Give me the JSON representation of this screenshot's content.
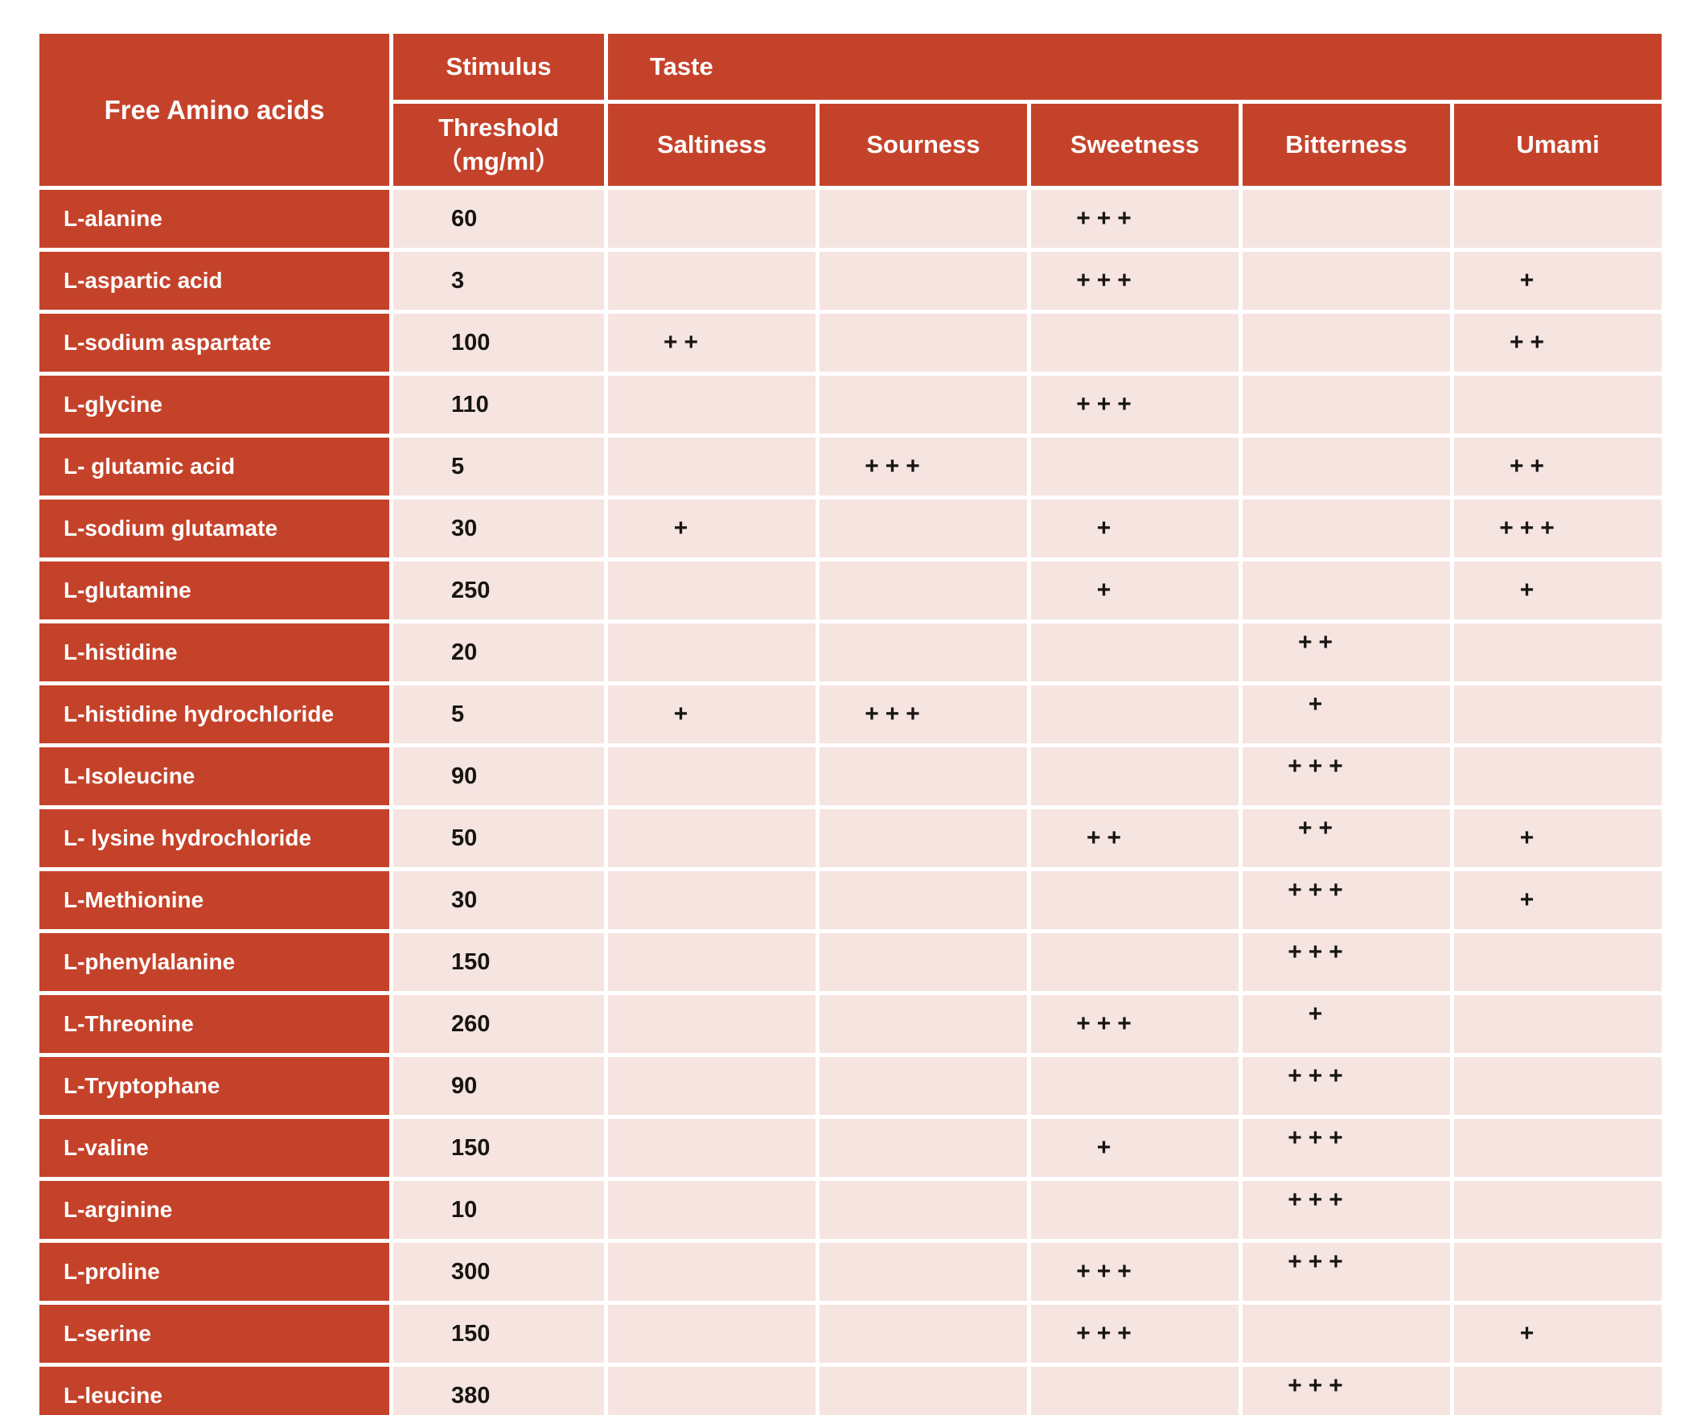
{
  "colors": {
    "header_red": "#C5422A",
    "cell_pink": "#F6E4E1",
    "text_dark": "#171513",
    "text_light": "#FFFFFF"
  },
  "table": {
    "header": {
      "amino_col": "Free Amino acids",
      "stimulus_line": "Stimulus",
      "threshold_line": "Threshold",
      "threshold_unit": "（mg/ml）",
      "taste_group": "Taste",
      "taste_columns": [
        "Saltiness",
        "Sourness",
        "Sweetness",
        "Bitterness",
        "Umami"
      ]
    },
    "rows": [
      {
        "name": "L-alanine",
        "threshold": "60",
        "saltiness": "",
        "sourness": "",
        "sweetness": "+++",
        "bitterness": "",
        "umami": ""
      },
      {
        "name": "L-aspartic acid",
        "threshold": "3",
        "saltiness": "",
        "sourness": "",
        "sweetness": "+++",
        "bitterness": "",
        "umami": "+"
      },
      {
        "name": "L-sodium aspartate",
        "threshold": "100",
        "saltiness": "++",
        "sourness": "",
        "sweetness": "",
        "bitterness": "",
        "umami": "++"
      },
      {
        "name": "L-glycine",
        "threshold": "110",
        "saltiness": "",
        "sourness": "",
        "sweetness": "+++",
        "bitterness": "",
        "umami": ""
      },
      {
        "name": "L- glutamic acid",
        "threshold": "5",
        "saltiness": "",
        "sourness": "+++",
        "sweetness": "",
        "bitterness": "",
        "umami": "++"
      },
      {
        "name": "L-sodium glutamate",
        "threshold": "30",
        "saltiness": "+",
        "sourness": "",
        "sweetness": "+",
        "bitterness": "",
        "umami": "+++"
      },
      {
        "name": "L-glutamine",
        "threshold": "250",
        "saltiness": "",
        "sourness": "",
        "sweetness": "+",
        "bitterness": "",
        "umami": "+"
      },
      {
        "name": "L-histidine",
        "threshold": "20",
        "saltiness": "",
        "sourness": "",
        "sweetness": "",
        "bitterness": "++",
        "umami": ""
      },
      {
        "name": "L-histidine hydrochloride",
        "threshold": "5",
        "saltiness": "+",
        "sourness": "+++",
        "sweetness": "",
        "bitterness": "+",
        "umami": ""
      },
      {
        "name": "L-Isoleucine",
        "threshold": "90",
        "saltiness": "",
        "sourness": "",
        "sweetness": "",
        "bitterness": "+++",
        "umami": ""
      },
      {
        "name": "L- lysine hydrochloride",
        "threshold": "50",
        "saltiness": "",
        "sourness": "",
        "sweetness": "++",
        "bitterness": "++",
        "umami": "+"
      },
      {
        "name": "L-Methionine",
        "threshold": "30",
        "saltiness": "",
        "sourness": "",
        "sweetness": "",
        "bitterness": "+++",
        "umami": "+"
      },
      {
        "name": "L-phenylalanine",
        "threshold": "150",
        "saltiness": "",
        "sourness": "",
        "sweetness": "",
        "bitterness": "+++",
        "umami": ""
      },
      {
        "name": "L-Threonine",
        "threshold": "260",
        "saltiness": "",
        "sourness": "",
        "sweetness": "+++",
        "bitterness": "+",
        "umami": ""
      },
      {
        "name": "L-Tryptophane",
        "threshold": "90",
        "saltiness": "",
        "sourness": "",
        "sweetness": "",
        "bitterness": "+++",
        "umami": ""
      },
      {
        "name": "L-valine",
        "threshold": "150",
        "saltiness": "",
        "sourness": "",
        "sweetness": "+",
        "bitterness": "+++",
        "umami": ""
      },
      {
        "name": "L-arginine",
        "threshold": "10",
        "saltiness": "",
        "sourness": "",
        "sweetness": "",
        "bitterness": "+++",
        "umami": ""
      },
      {
        "name": "L-proline",
        "threshold": "300",
        "saltiness": "",
        "sourness": "",
        "sweetness": "+++",
        "bitterness": "+++",
        "umami": ""
      },
      {
        "name": "L-serine",
        "threshold": "150",
        "saltiness": "",
        "sourness": "",
        "sweetness": "+++",
        "bitterness": "",
        "umami": "+"
      },
      {
        "name": "L-leucine",
        "threshold": "380",
        "saltiness": "",
        "sourness": "",
        "sweetness": "",
        "bitterness": "+++",
        "umami": ""
      }
    ]
  }
}
